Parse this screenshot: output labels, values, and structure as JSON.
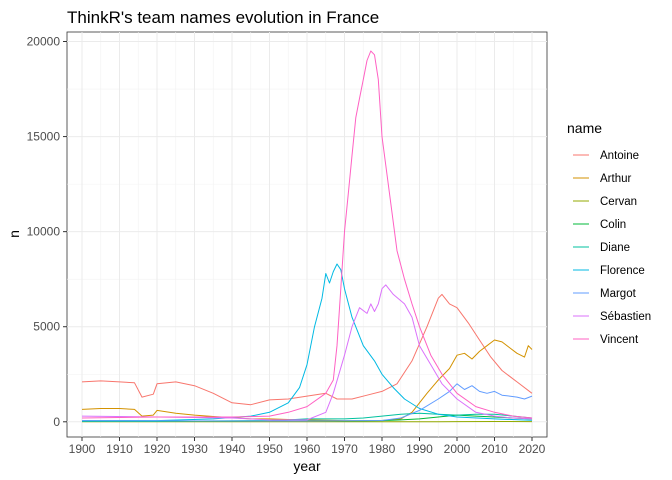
{
  "chart_data": {
    "type": "line",
    "title": "ThinkR's team names evolution in France",
    "xlabel": "year",
    "ylabel": "n",
    "xlim": [
      1896,
      2024
    ],
    "ylim": [
      -800,
      20500
    ],
    "x_ticks": [
      1900,
      1910,
      1920,
      1930,
      1940,
      1950,
      1960,
      1970,
      1980,
      1990,
      2000,
      2010,
      2020
    ],
    "y_ticks": [
      0,
      5000,
      10000,
      15000,
      20000
    ],
    "y_tick_labels": [
      "0",
      "5000",
      "10000",
      "15000",
      "20000"
    ],
    "grid": true,
    "legend_position": "right",
    "legend_title": "name",
    "series": [
      {
        "name": "Antoine",
        "color": "#F8766D",
        "points": [
          [
            1900,
            2100
          ],
          [
            1905,
            2150
          ],
          [
            1910,
            2100
          ],
          [
            1914,
            2050
          ],
          [
            1916,
            1300
          ],
          [
            1919,
            1450
          ],
          [
            1920,
            2000
          ],
          [
            1925,
            2100
          ],
          [
            1930,
            1900
          ],
          [
            1935,
            1500
          ],
          [
            1940,
            1000
          ],
          [
            1945,
            900
          ],
          [
            1950,
            1150
          ],
          [
            1955,
            1200
          ],
          [
            1960,
            1350
          ],
          [
            1965,
            1500
          ],
          [
            1968,
            1200
          ],
          [
            1972,
            1200
          ],
          [
            1976,
            1400
          ],
          [
            1980,
            1600
          ],
          [
            1984,
            2000
          ],
          [
            1988,
            3200
          ],
          [
            1992,
            5000
          ],
          [
            1995,
            6500
          ],
          [
            1996,
            6700
          ],
          [
            1998,
            6200
          ],
          [
            2000,
            6000
          ],
          [
            2003,
            5200
          ],
          [
            2006,
            4300
          ],
          [
            2009,
            3400
          ],
          [
            2012,
            2700
          ],
          [
            2016,
            2100
          ],
          [
            2020,
            1500
          ]
        ]
      },
      {
        "name": "Arthur",
        "color": "#D39200",
        "points": [
          [
            1900,
            650
          ],
          [
            1905,
            700
          ],
          [
            1910,
            700
          ],
          [
            1914,
            650
          ],
          [
            1916,
            300
          ],
          [
            1919,
            350
          ],
          [
            1920,
            600
          ],
          [
            1925,
            450
          ],
          [
            1930,
            350
          ],
          [
            1935,
            280
          ],
          [
            1940,
            220
          ],
          [
            1945,
            150
          ],
          [
            1950,
            150
          ],
          [
            1955,
            120
          ],
          [
            1960,
            100
          ],
          [
            1965,
            80
          ],
          [
            1970,
            60
          ],
          [
            1975,
            60
          ],
          [
            1980,
            70
          ],
          [
            1985,
            150
          ],
          [
            1988,
            500
          ],
          [
            1990,
            1000
          ],
          [
            1992,
            1500
          ],
          [
            1995,
            2200
          ],
          [
            1998,
            2800
          ],
          [
            2000,
            3500
          ],
          [
            2002,
            3600
          ],
          [
            2004,
            3300
          ],
          [
            2006,
            3700
          ],
          [
            2008,
            4000
          ],
          [
            2010,
            4300
          ],
          [
            2012,
            4200
          ],
          [
            2014,
            3900
          ],
          [
            2016,
            3600
          ],
          [
            2018,
            3400
          ],
          [
            2019,
            4000
          ],
          [
            2020,
            3800
          ]
        ]
      },
      {
        "name": "Cervan",
        "color": "#93AA00",
        "points": [
          [
            1900,
            0
          ],
          [
            1940,
            0
          ],
          [
            1980,
            0
          ],
          [
            1995,
            0
          ],
          [
            2000,
            10
          ],
          [
            2010,
            15
          ],
          [
            2020,
            10
          ]
        ]
      },
      {
        "name": "Colin",
        "color": "#00BA38",
        "points": [
          [
            1900,
            50
          ],
          [
            1920,
            40
          ],
          [
            1940,
            30
          ],
          [
            1960,
            50
          ],
          [
            1970,
            40
          ],
          [
            1980,
            60
          ],
          [
            1985,
            100
          ],
          [
            1990,
            150
          ],
          [
            1995,
            250
          ],
          [
            2000,
            350
          ],
          [
            2005,
            300
          ],
          [
            2010,
            250
          ],
          [
            2015,
            200
          ],
          [
            2020,
            150
          ]
        ]
      },
      {
        "name": "Diane",
        "color": "#00C19F",
        "points": [
          [
            1900,
            20
          ],
          [
            1920,
            20
          ],
          [
            1940,
            50
          ],
          [
            1950,
            60
          ],
          [
            1955,
            100
          ],
          [
            1960,
            150
          ],
          [
            1965,
            150
          ],
          [
            1970,
            150
          ],
          [
            1975,
            200
          ],
          [
            1980,
            300
          ],
          [
            1985,
            400
          ],
          [
            1990,
            450
          ],
          [
            1995,
            400
          ],
          [
            2000,
            350
          ],
          [
            2005,
            400
          ],
          [
            2010,
            400
          ],
          [
            2015,
            300
          ],
          [
            2020,
            200
          ]
        ]
      },
      {
        "name": "Florence",
        "color": "#00B9E3",
        "points": [
          [
            1900,
            50
          ],
          [
            1920,
            60
          ],
          [
            1935,
            150
          ],
          [
            1945,
            300
          ],
          [
            1950,
            500
          ],
          [
            1955,
            1000
          ],
          [
            1958,
            1800
          ],
          [
            1960,
            3000
          ],
          [
            1962,
            5000
          ],
          [
            1964,
            6500
          ],
          [
            1965,
            7800
          ],
          [
            1966,
            7300
          ],
          [
            1967,
            7900
          ],
          [
            1968,
            8300
          ],
          [
            1969,
            8000
          ],
          [
            1970,
            7000
          ],
          [
            1972,
            5500
          ],
          [
            1975,
            4000
          ],
          [
            1978,
            3200
          ],
          [
            1980,
            2500
          ],
          [
            1983,
            1800
          ],
          [
            1986,
            1200
          ],
          [
            1990,
            700
          ],
          [
            1995,
            400
          ],
          [
            2000,
            250
          ],
          [
            2010,
            150
          ],
          [
            2020,
            80
          ]
        ]
      },
      {
        "name": "Margot",
        "color": "#619CFF",
        "points": [
          [
            1900,
            60
          ],
          [
            1920,
            50
          ],
          [
            1940,
            40
          ],
          [
            1960,
            40
          ],
          [
            1970,
            50
          ],
          [
            1980,
            70
          ],
          [
            1985,
            200
          ],
          [
            1990,
            600
          ],
          [
            1995,
            1200
          ],
          [
            1998,
            1600
          ],
          [
            2000,
            2000
          ],
          [
            2002,
            1700
          ],
          [
            2004,
            1900
          ],
          [
            2006,
            1600
          ],
          [
            2008,
            1500
          ],
          [
            2010,
            1600
          ],
          [
            2012,
            1400
          ],
          [
            2014,
            1350
          ],
          [
            2016,
            1300
          ],
          [
            2018,
            1200
          ],
          [
            2020,
            1350
          ]
        ]
      },
      {
        "name": "Sébastien",
        "color": "#DB72FB",
        "points": [
          [
            1900,
            300
          ],
          [
            1920,
            250
          ],
          [
            1940,
            200
          ],
          [
            1950,
            100
          ],
          [
            1960,
            100
          ],
          [
            1965,
            500
          ],
          [
            1967,
            1500
          ],
          [
            1970,
            3500
          ],
          [
            1972,
            5000
          ],
          [
            1974,
            6000
          ],
          [
            1976,
            5700
          ],
          [
            1977,
            6200
          ],
          [
            1978,
            5800
          ],
          [
            1979,
            6200
          ],
          [
            1980,
            7000
          ],
          [
            1981,
            7200
          ],
          [
            1983,
            6700
          ],
          [
            1986,
            6200
          ],
          [
            1988,
            5500
          ],
          [
            1990,
            4000
          ],
          [
            1993,
            3000
          ],
          [
            1996,
            2000
          ],
          [
            2000,
            1200
          ],
          [
            2005,
            500
          ],
          [
            2010,
            300
          ],
          [
            2015,
            200
          ],
          [
            2020,
            150
          ]
        ]
      },
      {
        "name": "Vincent",
        "color": "#FF61C3",
        "points": [
          [
            1900,
            200
          ],
          [
            1920,
            250
          ],
          [
            1940,
            250
          ],
          [
            1950,
            300
          ],
          [
            1955,
            500
          ],
          [
            1960,
            800
          ],
          [
            1965,
            1500
          ],
          [
            1967,
            2200
          ],
          [
            1968,
            4000
          ],
          [
            1969,
            7000
          ],
          [
            1970,
            10000
          ],
          [
            1971,
            12000
          ],
          [
            1972,
            14000
          ],
          [
            1973,
            16000
          ],
          [
            1974,
            17000
          ],
          [
            1975,
            18000
          ],
          [
            1976,
            19000
          ],
          [
            1977,
            19500
          ],
          [
            1978,
            19300
          ],
          [
            1979,
            18000
          ],
          [
            1980,
            15000
          ],
          [
            1982,
            12000
          ],
          [
            1984,
            9000
          ],
          [
            1986,
            7500
          ],
          [
            1988,
            6200
          ],
          [
            1990,
            5000
          ],
          [
            1993,
            3500
          ],
          [
            1996,
            2500
          ],
          [
            2000,
            1500
          ],
          [
            2005,
            800
          ],
          [
            2010,
            500
          ],
          [
            2015,
            300
          ],
          [
            2020,
            200
          ]
        ]
      }
    ]
  }
}
